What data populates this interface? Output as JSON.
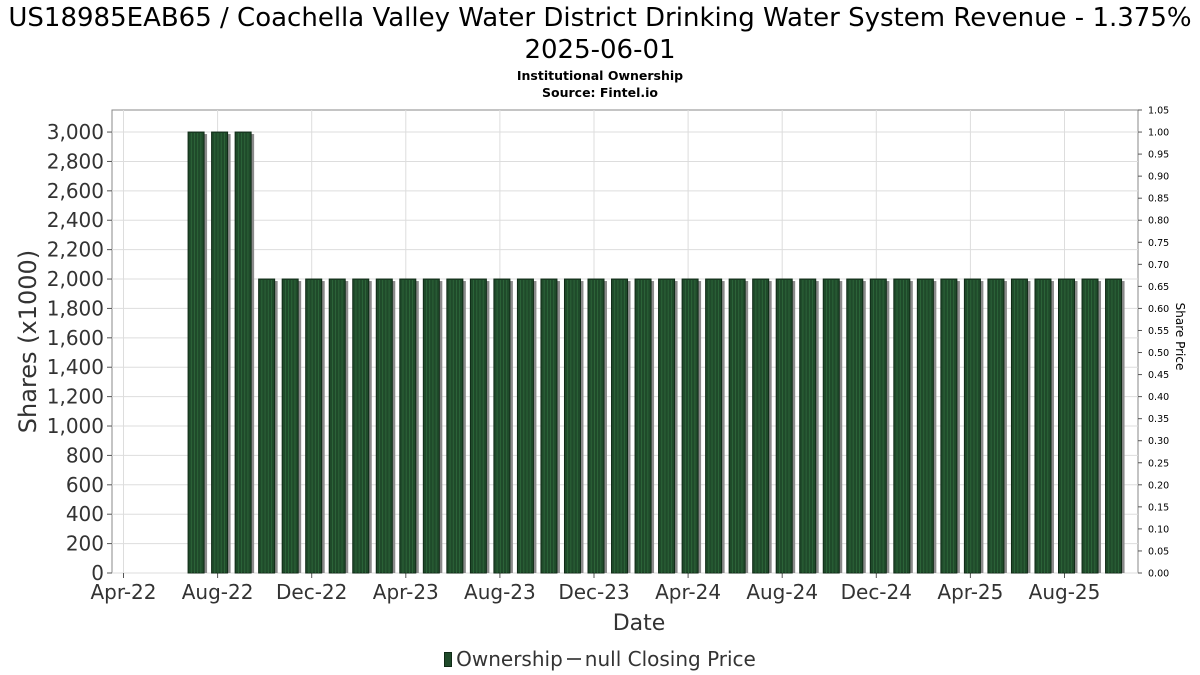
{
  "title": "US18985EAB65 / Coachella Valley Water District Drinking Water System Revenue - 1.375% 2025-06-01",
  "subtitle": "Institutional Ownership",
  "source": "Source: Fintel.io",
  "legend": {
    "ownership": "Ownership",
    "price": "null Closing Price"
  },
  "chart_data": {
    "type": "bar",
    "xlabel": "Date",
    "ylabel": "Shares (x1000)",
    "y2label": "Share Price",
    "ylim": [
      0,
      3150
    ],
    "y2lim": [
      0,
      1.05
    ],
    "yticks": [
      0,
      200,
      400,
      600,
      800,
      1000,
      1200,
      1400,
      1600,
      1800,
      2000,
      2200,
      2400,
      2600,
      2800,
      3000
    ],
    "y2ticks": [
      "0.00",
      "0.05",
      "0.10",
      "0.15",
      "0.20",
      "0.25",
      "0.30",
      "0.35",
      "0.40",
      "0.45",
      "0.50",
      "0.55",
      "0.60",
      "0.65",
      "0.70",
      "0.75",
      "0.80",
      "0.85",
      "0.90",
      "0.95",
      "1.00",
      "1.05"
    ],
    "xticks": [
      "Apr-22",
      "Aug-22",
      "Dec-22",
      "Apr-23",
      "Aug-23",
      "Dec-23",
      "Apr-24",
      "Aug-24",
      "Dec-24",
      "Apr-25",
      "Aug-25"
    ],
    "grid": true,
    "legend_position": "bottom",
    "colors": {
      "bar": "#1f4a2a",
      "bar_shadow": "#8a8a8a",
      "grid": "#dddddd"
    },
    "series": [
      {
        "name": "Ownership",
        "values": [
          3000,
          3000,
          3000,
          2000,
          2000,
          2000,
          2000,
          2000,
          2000,
          2000,
          2000,
          2000,
          2000,
          2000,
          2000,
          2000,
          2000,
          2000,
          2000,
          2000,
          2000,
          2000,
          2000,
          2000,
          2000,
          2000,
          2000,
          2000,
          2000,
          2000,
          2000,
          2000,
          2000,
          2000,
          2000,
          2000,
          2000,
          2000,
          2000,
          2000
        ]
      }
    ]
  }
}
